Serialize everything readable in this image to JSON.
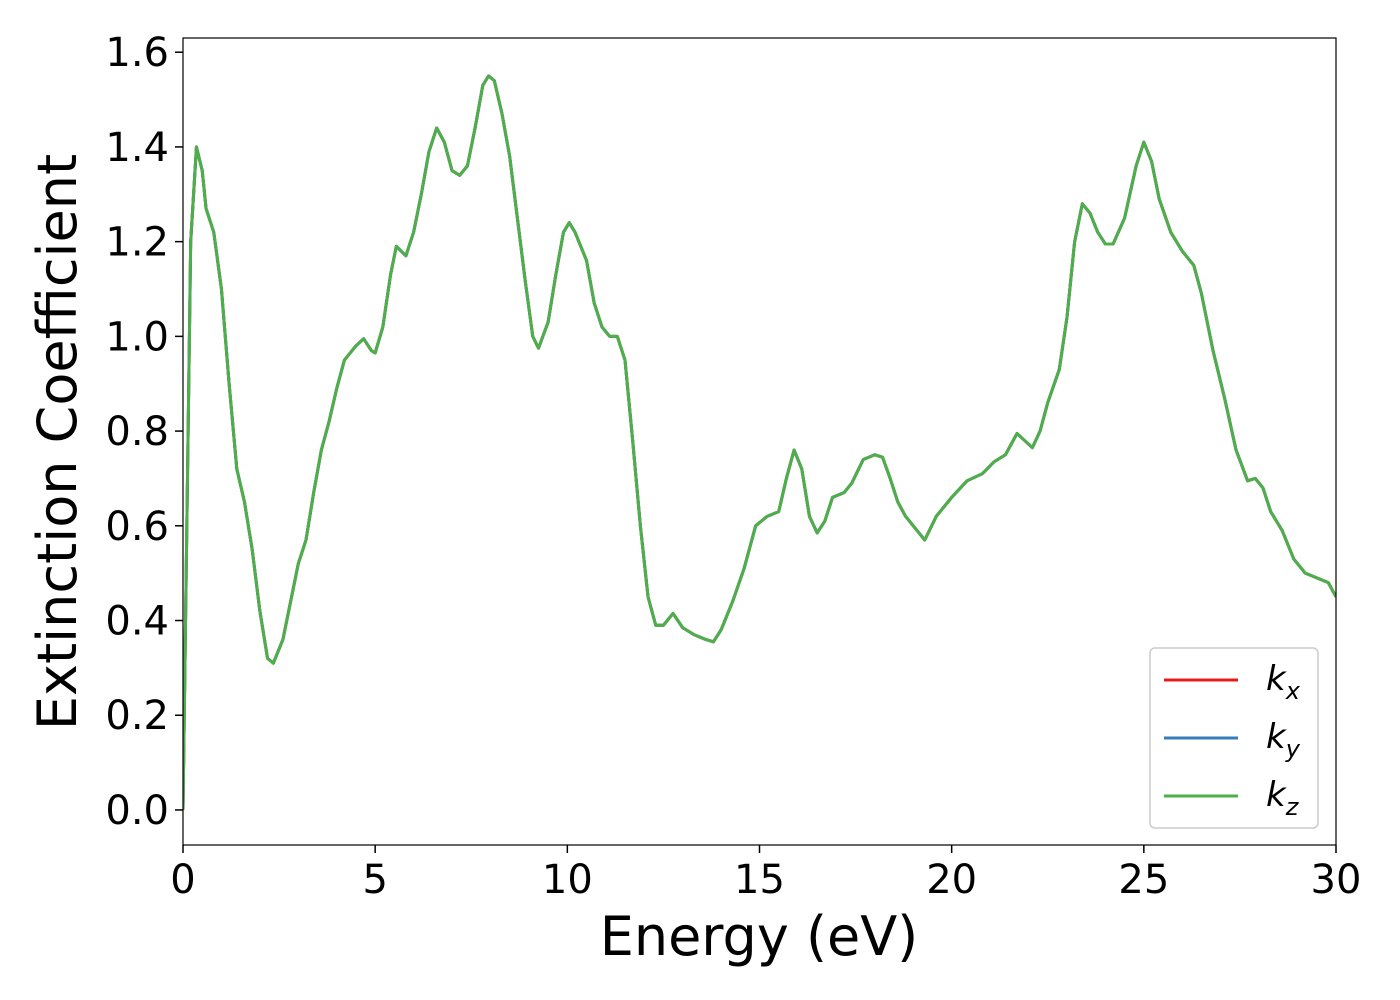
{
  "chart_data": {
    "type": "line",
    "xlabel": "Energy (eV)",
    "ylabel": "Extinction Coefficient",
    "x": [
      0,
      0.1,
      0.2,
      0.35,
      0.5,
      0.6,
      0.8,
      1.0,
      1.2,
      1.4,
      1.6,
      1.8,
      2.0,
      2.2,
      2.35,
      2.6,
      2.8,
      3.0,
      3.2,
      3.4,
      3.6,
      3.8,
      4.0,
      4.2,
      4.5,
      4.7,
      4.9,
      5.0,
      5.2,
      5.4,
      5.55,
      5.8,
      6.0,
      6.2,
      6.4,
      6.6,
      6.8,
      7.0,
      7.2,
      7.4,
      7.6,
      7.8,
      7.95,
      8.1,
      8.3,
      8.5,
      8.7,
      8.9,
      9.1,
      9.25,
      9.5,
      9.7,
      9.9,
      10.05,
      10.2,
      10.5,
      10.7,
      10.9,
      11.1,
      11.3,
      11.5,
      11.7,
      11.9,
      12.1,
      12.3,
      12.5,
      12.75,
      13.0,
      13.3,
      13.6,
      13.8,
      14.0,
      14.3,
      14.6,
      14.9,
      15.2,
      15.5,
      15.7,
      15.9,
      16.1,
      16.3,
      16.5,
      16.7,
      16.9,
      17.2,
      17.4,
      17.7,
      18.0,
      18.2,
      18.4,
      18.6,
      18.8,
      19.0,
      19.3,
      19.6,
      20.0,
      20.4,
      20.8,
      21.1,
      21.4,
      21.7,
      21.9,
      22.1,
      22.3,
      22.5,
      22.8,
      23.0,
      23.2,
      23.4,
      23.6,
      23.8,
      24.0,
      24.2,
      24.5,
      24.8,
      25.0,
      25.2,
      25.4,
      25.7,
      26.0,
      26.3,
      26.5,
      26.8,
      27.1,
      27.4,
      27.7,
      27.9,
      28.1,
      28.3,
      28.6,
      28.9,
      29.2,
      29.5,
      29.8,
      30.0
    ],
    "series": [
      {
        "name": "kx",
        "color": "#e41a1c",
        "values": [
          0,
          0.6,
          1.2,
          1.4,
          1.35,
          1.27,
          1.22,
          1.1,
          0.9,
          0.72,
          0.65,
          0.55,
          0.42,
          0.32,
          0.31,
          0.36,
          0.44,
          0.52,
          0.57,
          0.67,
          0.76,
          0.82,
          0.89,
          0.95,
          0.98,
          0.995,
          0.97,
          0.965,
          1.02,
          1.13,
          1.19,
          1.17,
          1.22,
          1.3,
          1.39,
          1.44,
          1.41,
          1.35,
          1.34,
          1.36,
          1.44,
          1.53,
          1.55,
          1.54,
          1.47,
          1.38,
          1.25,
          1.12,
          1.0,
          0.975,
          1.03,
          1.13,
          1.22,
          1.24,
          1.22,
          1.16,
          1.07,
          1.02,
          1.0,
          1.0,
          0.95,
          0.78,
          0.6,
          0.45,
          0.39,
          0.39,
          0.415,
          0.385,
          0.37,
          0.36,
          0.355,
          0.38,
          0.44,
          0.51,
          0.6,
          0.62,
          0.63,
          0.7,
          0.76,
          0.72,
          0.62,
          0.585,
          0.61,
          0.66,
          0.67,
          0.69,
          0.74,
          0.75,
          0.745,
          0.7,
          0.65,
          0.62,
          0.6,
          0.57,
          0.62,
          0.66,
          0.695,
          0.71,
          0.735,
          0.75,
          0.795,
          0.78,
          0.765,
          0.8,
          0.86,
          0.93,
          1.04,
          1.2,
          1.28,
          1.26,
          1.22,
          1.195,
          1.195,
          1.25,
          1.36,
          1.41,
          1.37,
          1.29,
          1.22,
          1.18,
          1.15,
          1.09,
          0.97,
          0.87,
          0.76,
          0.695,
          0.7,
          0.68,
          0.63,
          0.59,
          0.53,
          0.5,
          0.49,
          0.48,
          0.45
        ]
      },
      {
        "name": "ky",
        "color": "#377eb8",
        "values": [
          0,
          0.6,
          1.2,
          1.4,
          1.35,
          1.27,
          1.22,
          1.1,
          0.9,
          0.72,
          0.65,
          0.55,
          0.42,
          0.32,
          0.31,
          0.36,
          0.44,
          0.52,
          0.57,
          0.67,
          0.76,
          0.82,
          0.89,
          0.95,
          0.98,
          0.995,
          0.97,
          0.965,
          1.02,
          1.13,
          1.19,
          1.17,
          1.22,
          1.3,
          1.39,
          1.44,
          1.41,
          1.35,
          1.34,
          1.36,
          1.44,
          1.53,
          1.55,
          1.54,
          1.47,
          1.38,
          1.25,
          1.12,
          1.0,
          0.975,
          1.03,
          1.13,
          1.22,
          1.24,
          1.22,
          1.16,
          1.07,
          1.02,
          1.0,
          1.0,
          0.95,
          0.78,
          0.6,
          0.45,
          0.39,
          0.39,
          0.415,
          0.385,
          0.37,
          0.36,
          0.355,
          0.38,
          0.44,
          0.51,
          0.6,
          0.62,
          0.63,
          0.7,
          0.76,
          0.72,
          0.62,
          0.585,
          0.61,
          0.66,
          0.67,
          0.69,
          0.74,
          0.75,
          0.745,
          0.7,
          0.65,
          0.62,
          0.6,
          0.57,
          0.62,
          0.66,
          0.695,
          0.71,
          0.735,
          0.75,
          0.795,
          0.78,
          0.765,
          0.8,
          0.86,
          0.93,
          1.04,
          1.2,
          1.28,
          1.26,
          1.22,
          1.195,
          1.195,
          1.25,
          1.36,
          1.41,
          1.37,
          1.29,
          1.22,
          1.18,
          1.15,
          1.09,
          0.97,
          0.87,
          0.76,
          0.695,
          0.7,
          0.68,
          0.63,
          0.59,
          0.53,
          0.5,
          0.49,
          0.48,
          0.45
        ]
      },
      {
        "name": "kz",
        "color": "#4daf4a",
        "values": [
          0,
          0.6,
          1.2,
          1.4,
          1.35,
          1.27,
          1.22,
          1.1,
          0.9,
          0.72,
          0.65,
          0.55,
          0.42,
          0.32,
          0.31,
          0.36,
          0.44,
          0.52,
          0.57,
          0.67,
          0.76,
          0.82,
          0.89,
          0.95,
          0.98,
          0.995,
          0.97,
          0.965,
          1.02,
          1.13,
          1.19,
          1.17,
          1.22,
          1.3,
          1.39,
          1.44,
          1.41,
          1.35,
          1.34,
          1.36,
          1.44,
          1.53,
          1.55,
          1.54,
          1.47,
          1.38,
          1.25,
          1.12,
          1.0,
          0.975,
          1.03,
          1.13,
          1.22,
          1.24,
          1.22,
          1.16,
          1.07,
          1.02,
          1.0,
          1.0,
          0.95,
          0.78,
          0.6,
          0.45,
          0.39,
          0.39,
          0.415,
          0.385,
          0.37,
          0.36,
          0.355,
          0.38,
          0.44,
          0.51,
          0.6,
          0.62,
          0.63,
          0.7,
          0.76,
          0.72,
          0.62,
          0.585,
          0.61,
          0.66,
          0.67,
          0.69,
          0.74,
          0.75,
          0.745,
          0.7,
          0.65,
          0.62,
          0.6,
          0.57,
          0.62,
          0.66,
          0.695,
          0.71,
          0.735,
          0.75,
          0.795,
          0.78,
          0.765,
          0.8,
          0.86,
          0.93,
          1.04,
          1.2,
          1.28,
          1.26,
          1.22,
          1.195,
          1.195,
          1.25,
          1.36,
          1.41,
          1.37,
          1.29,
          1.22,
          1.18,
          1.15,
          1.09,
          0.97,
          0.87,
          0.76,
          0.695,
          0.7,
          0.68,
          0.63,
          0.59,
          0.53,
          0.5,
          0.49,
          0.48,
          0.45
        ]
      }
    ],
    "xlim": [
      0,
      30
    ],
    "xticks": [
      0,
      5,
      10,
      15,
      20,
      25,
      30
    ],
    "ylim": [
      -0.074,
      1.63
    ],
    "yticks": [
      {
        "value": 0,
        "label": "0.0"
      },
      0.2,
      0.4,
      0.6,
      0.8,
      {
        "value": 1,
        "label": "1.0"
      },
      1.2,
      1.4,
      1.6
    ],
    "legend": "lower right"
  }
}
